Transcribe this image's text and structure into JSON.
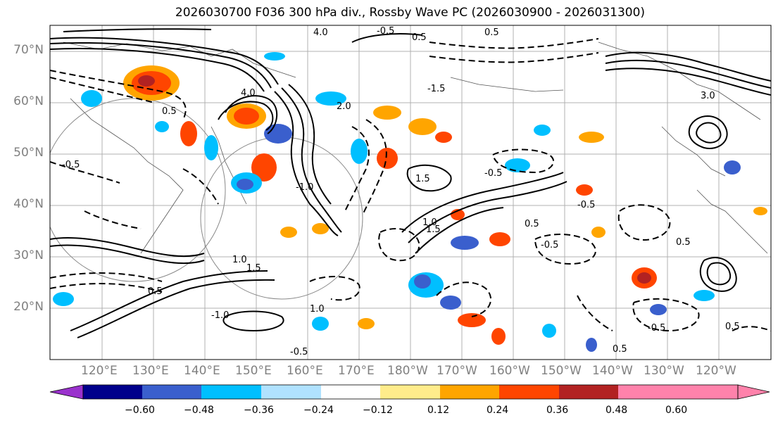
{
  "title": "2026030700 F036 300 hPa div., Rossby Wave PC (2026030900 - 2026031300)",
  "map": {
    "region": "North Pacific",
    "lat_labels": [
      "70°N",
      "60°N",
      "50°N",
      "40°N",
      "30°N",
      "20°N"
    ],
    "lon_labels": [
      "120°E",
      "130°E",
      "140°E",
      "150°E",
      "160°E",
      "170°E",
      "180°W",
      "170°W",
      "160°W",
      "150°W",
      "140°W",
      "130°W",
      "120°W"
    ],
    "contour_labels": [
      "4.0",
      "-0.5",
      "0.5",
      "0.5",
      "4.0",
      "0.5",
      "-1.5",
      "3.0",
      "-1.0",
      "1.5",
      "2.0",
      "-0.5",
      "-0.5",
      "1.0",
      "1.5",
      "1.5",
      "-0.5",
      "1.0",
      "-0.5",
      "0.5",
      "-0.5",
      "-1.0",
      "0.5",
      "0.5",
      "0.5",
      "0.5",
      "-0.5",
      "1.0"
    ]
  },
  "colorbar": {
    "ticks": [
      "−0.60",
      "−0.48",
      "−0.36",
      "−0.24",
      "−0.12",
      "0.12",
      "0.24",
      "0.36",
      "0.48",
      "0.60"
    ],
    "colors": [
      "#9a32cd",
      "#00008b",
      "#3a5fcd",
      "#00bfff",
      "#b0e2ff",
      "#ffffff",
      "#ffec8b",
      "#ffa500",
      "#ff4500",
      "#b22222",
      "#ff82ab"
    ]
  }
}
